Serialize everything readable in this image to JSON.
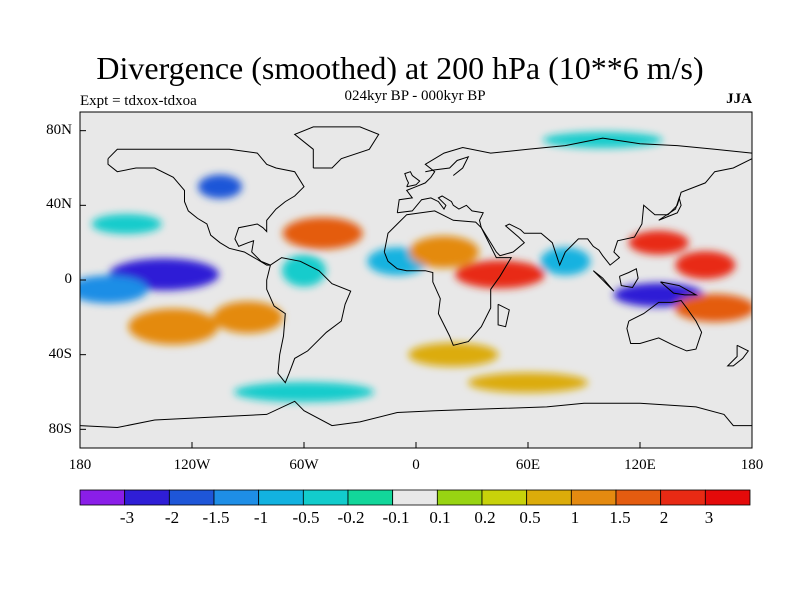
{
  "title": "Divergence (smoothed) at 200 hPa (10**6 m/s)",
  "subtitle": "024kyr BP - 000kyr BP",
  "experiment": "Expt = tdxox-tdxoa",
  "season": "JJA",
  "lat_labels": [
    "80N",
    "40N",
    "0",
    "40S",
    "80S"
  ],
  "lon_labels": [
    "180",
    "120W",
    "60W",
    "0",
    "60E",
    "120E",
    "180"
  ],
  "colorbar": {
    "colors": [
      "#8a1ee8",
      "#2f1ed6",
      "#1e56d8",
      "#1e8ee6",
      "#12b2e0",
      "#12cccc",
      "#12d69a",
      "#e8e8e8",
      "#98d412",
      "#c8d20a",
      "#dcac0a",
      "#e48a10",
      "#e45c10",
      "#e82a14",
      "#e40a0a"
    ],
    "labels": [
      "-3",
      "-2",
      "-1.5",
      "-1",
      "-0.5",
      "-0.2",
      "-0.1",
      "0.1",
      "0.2",
      "0.5",
      "1",
      "1.5",
      "2",
      "3"
    ]
  },
  "chart_data": {
    "type": "heatmap",
    "title": "Divergence (smoothed) at 200 hPa (10**6 m/s)",
    "subtitle": "024kyr BP - 000kyr BP",
    "xlim": [
      -180,
      180
    ],
    "ylim": [
      -90,
      90
    ],
    "levels": [
      -3,
      -2,
      -1.5,
      -1,
      -0.5,
      -0.2,
      -0.1,
      0.1,
      0.2,
      0.5,
      1,
      1.5,
      2,
      3
    ],
    "features": [
      {
        "lon": -135,
        "lat": 3,
        "value": -2.5
      },
      {
        "lon": -165,
        "lat": -5,
        "value": -1.2
      },
      {
        "lon": 130,
        "lat": -8,
        "value": -3.0
      },
      {
        "lon": 155,
        "lat": 8,
        "value": 2.0
      },
      {
        "lon": 130,
        "lat": 20,
        "value": 2.0
      },
      {
        "lon": 45,
        "lat": 3,
        "value": 2.0
      },
      {
        "lon": 160,
        "lat": -15,
        "value": 1.5
      },
      {
        "lon": -50,
        "lat": 25,
        "value": 1.5
      },
      {
        "lon": -105,
        "lat": 50,
        "value": -2.0
      },
      {
        "lon": -10,
        "lat": 10,
        "value": -1.0
      },
      {
        "lon": 15,
        "lat": 15,
        "value": 1.0
      },
      {
        "lon": 80,
        "lat": 10,
        "value": -1.0
      },
      {
        "lon": -130,
        "lat": -25,
        "value": 1.0
      },
      {
        "lon": -90,
        "lat": -20,
        "value": 1.0
      },
      {
        "lon": -60,
        "lat": 5,
        "value": -0.5
      },
      {
        "lon": -155,
        "lat": 30,
        "value": -0.5
      },
      {
        "lon": 20,
        "lat": -40,
        "value": 0.5
      },
      {
        "lon": -60,
        "lat": -60,
        "value": -0.5
      },
      {
        "lon": 60,
        "lat": -55,
        "value": 0.5
      },
      {
        "lon": 100,
        "lat": 75,
        "value": -0.5
      }
    ]
  }
}
